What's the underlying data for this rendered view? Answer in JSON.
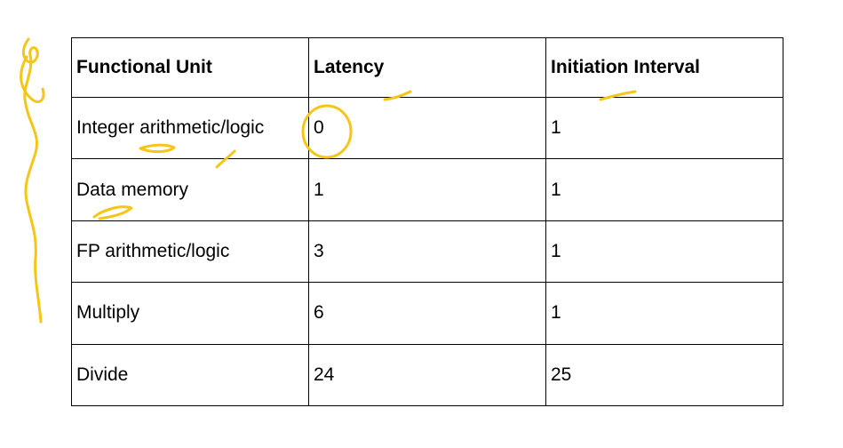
{
  "table": {
    "headers": [
      "Functional Unit",
      "Latency",
      "Initiation Interval"
    ],
    "rows": [
      [
        "Integer arithmetic/logic",
        "0",
        "1"
      ],
      [
        "Data memory",
        "1",
        "1"
      ],
      [
        "FP arithmetic/logic",
        "3",
        "1"
      ],
      [
        "Multiply",
        "6",
        "1"
      ],
      [
        "Divide",
        "24",
        "25"
      ]
    ]
  },
  "colors": {
    "ink_annotation": "#f5c518",
    "text": "#000000",
    "grid_lines": "#000000",
    "background": "#ffffff"
  }
}
